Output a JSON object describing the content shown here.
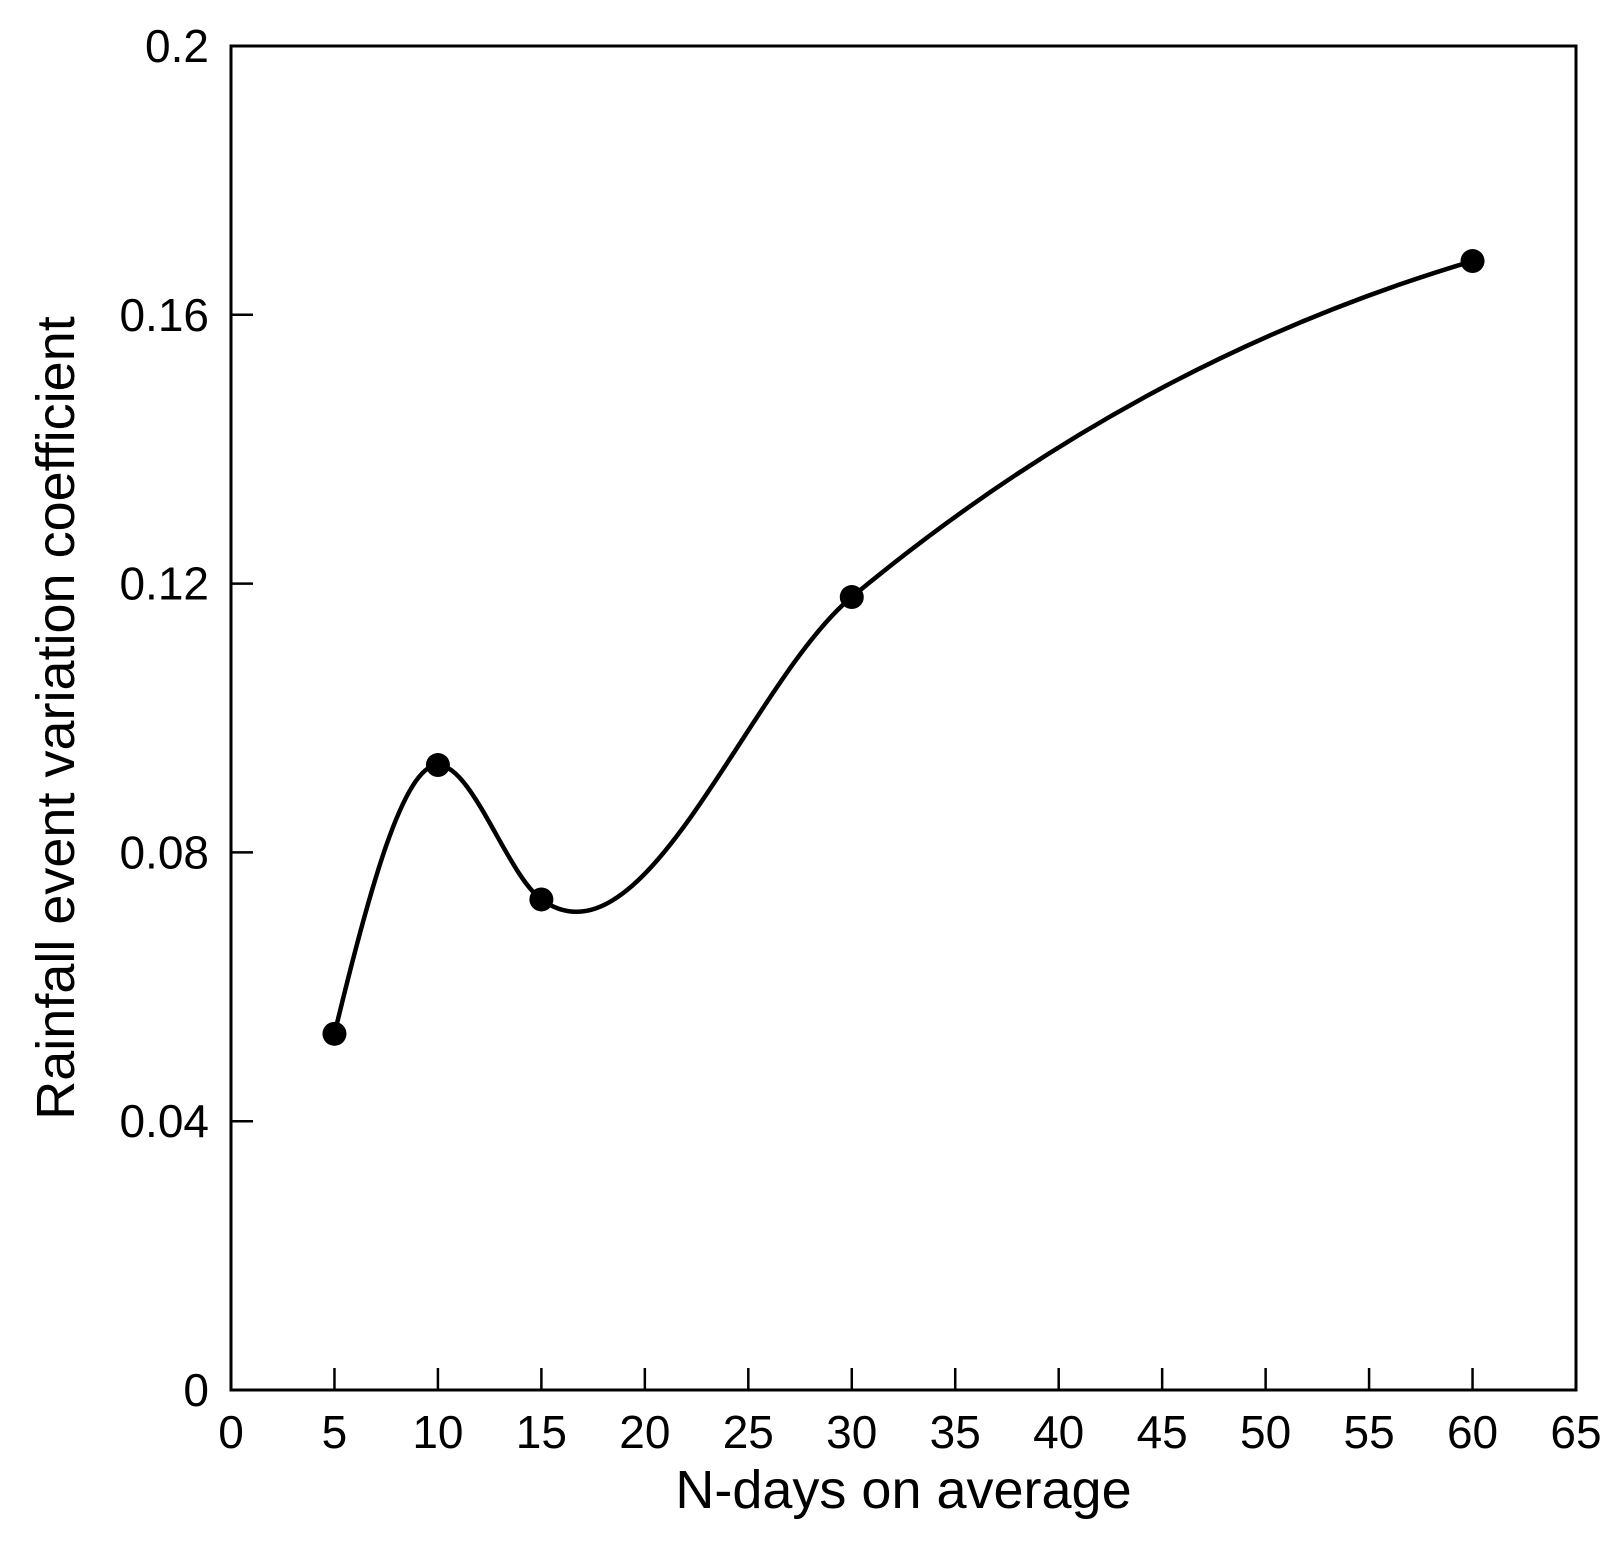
{
  "chart_data": {
    "type": "line",
    "title": "",
    "xlabel": "N-days on average",
    "ylabel": "Rainfall event variation coefficient",
    "xlim": [
      0,
      65
    ],
    "ylim": [
      0,
      0.2
    ],
    "xticks": [
      "0",
      "5",
      "10",
      "15",
      "20",
      "25",
      "30",
      "35",
      "40",
      "45",
      "50",
      "55",
      "60",
      "65"
    ],
    "yticks": [
      "0",
      "0.04",
      "0.08",
      "0.12",
      "0.16",
      "0.2"
    ],
    "smooth": true,
    "markers": "filled-circle",
    "grid": false,
    "legend": "none",
    "series": [
      {
        "x": [
          5,
          10,
          15,
          30,
          60
        ],
        "y": [
          0.053,
          0.093,
          0.073,
          0.118,
          0.168
        ]
      }
    ],
    "colors": {
      "line": "#000000",
      "marker": "#000000",
      "frame": "#000000"
    }
  }
}
